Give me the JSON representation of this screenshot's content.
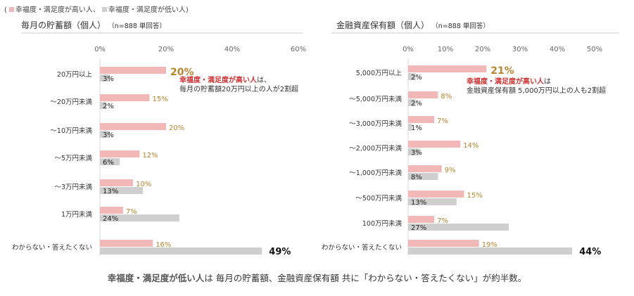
{
  "legend": {
    "open": "(",
    "high_label": "幸福度・満足度が高い人、",
    "low_label": "幸福度・満足度が低い人)",
    "high_color": "#f2b8b8",
    "low_color": "#cfcfcf"
  },
  "highlight_colors": {
    "value_text": "#b8862f",
    "red_text": "#d03030"
  },
  "chart_data": [
    {
      "type": "bar",
      "title": "毎月の貯蓄額（個人）",
      "note": "（n=888 単回答）",
      "x_ticks": [
        "0%",
        "20%",
        "40%",
        "60%"
      ],
      "xlim": [
        0,
        60
      ],
      "categories": [
        "20万円以上",
        "～20万円未満",
        "～10万円未満",
        "～5万円未満",
        "～3万円未満",
        "1万円未満",
        "わからない・答えたくない"
      ],
      "series": [
        {
          "name": "幸福度・満足度が高い人",
          "values": [
            20,
            15,
            20,
            12,
            10,
            7,
            16
          ],
          "labels": [
            "20%",
            "15%",
            "20%",
            "12%",
            "10%",
            "7%",
            "16%"
          ]
        },
        {
          "name": "幸福度・満足度が低い人",
          "values": [
            3,
            2,
            3,
            6,
            13,
            24,
            49
          ],
          "labels": [
            "3%",
            "2%",
            "3%",
            "6%",
            "13%",
            "24%",
            "49%"
          ]
        }
      ],
      "annotation": {
        "red": "幸福度・満足度が高い人",
        "rest": "は、",
        "line2": "毎月の貯蓄額20万円以上の人が2割超"
      }
    },
    {
      "type": "bar",
      "title": "金融資産保有額（個人）",
      "note": "（n=888 単回答）",
      "x_ticks": [
        "0%",
        "10%",
        "20%",
        "30%",
        "40%",
        "50%"
      ],
      "xlim": [
        0,
        50
      ],
      "categories": [
        "5,000万円以上",
        "～5,000万円未満",
        "～3,000万円未満",
        "～2,000万円未満",
        "～1,000万円未満",
        "～500万円未満",
        "100万円未満",
        "わからない・答えたくない"
      ],
      "series": [
        {
          "name": "幸福度・満足度が高い人",
          "values": [
            21,
            8,
            7,
            14,
            9,
            15,
            7,
            19
          ],
          "labels": [
            "21%",
            "8%",
            "7%",
            "14%",
            "9%",
            "15%",
            "7%",
            "19%"
          ]
        },
        {
          "name": "幸福度・満足度が低い人",
          "values": [
            2,
            2,
            1,
            3,
            8,
            13,
            27,
            44
          ],
          "labels": [
            "2%",
            "2%",
            "1%",
            "3%",
            "8%",
            "13%",
            "27%",
            "44%"
          ]
        }
      ],
      "annotation": {
        "red": "幸福度・満足度が高い人",
        "rest": "は",
        "line2": "金融資産保有額 5,000万円以上の人も2割超"
      }
    }
  ],
  "footer": {
    "bold": "幸福度・満足度が低い人",
    "rest": "は 毎月の貯蓄額、金融資産保有額 共に「わからない・答えたくない」が約半数。"
  }
}
